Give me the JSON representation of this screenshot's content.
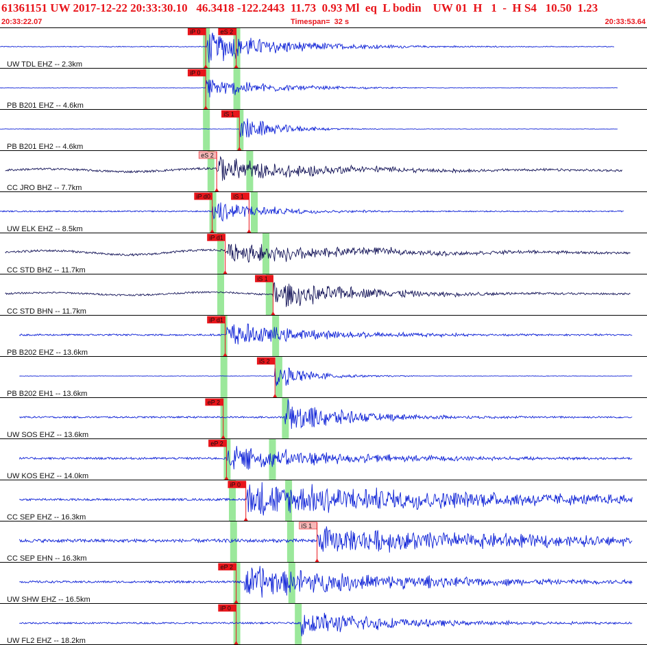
{
  "header": {
    "title": "61361151 UW 2017-12-22 20:33:30.10   46.3418 -122.2443  11.73  0.93 Ml  eq  L bodin    UW 01  H   1  -  H S4   10.50  1.23",
    "time_start": "20:33:22.07",
    "timespan": "Timespan=  32 s",
    "time_end": "20:33:53.64"
  },
  "colors": {
    "header_red": "#e8151b",
    "wave_blue": "#0b1fd6",
    "wave_navy": "#141458",
    "window_green": "#9be89b",
    "pick_red": "#e8151b",
    "pick_pink": "#f6b8b8",
    "separator": "#000000"
  },
  "traces": [
    {
      "label": "UW TDL EHZ -- 2.3km",
      "wave": "blue",
      "start": 0.0,
      "end": 0.95,
      "noise": 0.02,
      "onset": 0.318,
      "decay": 0.12,
      "peak": 0.7,
      "long_period": 0,
      "picks": [
        {
          "text": "iP 0",
          "t": 0.318,
          "kind": "red"
        },
        {
          "text": "eS 2",
          "t": 0.365,
          "kind": "red"
        }
      ],
      "windows": [
        0.318,
        0.365
      ]
    },
    {
      "label": "PB B201 EHZ -- 4.6km",
      "wave": "blue",
      "start": 0.0,
      "end": 0.955,
      "noise": 0.01,
      "onset": 0.318,
      "decay": 0.1,
      "peak": 0.45,
      "long_period": 0,
      "picks": [
        {
          "text": "iP 0",
          "t": 0.318,
          "kind": "red"
        }
      ],
      "windows": [
        0.318,
        0.365
      ]
    },
    {
      "label": "PB B201 EH2 -- 4.6km",
      "wave": "blue",
      "start": 0.0,
      "end": 0.955,
      "noise": 0.01,
      "onset": 0.37,
      "decay": 0.06,
      "peak": 0.55,
      "long_period": 0,
      "picks": [
        {
          "text": "iS 1",
          "t": 0.37,
          "kind": "red"
        }
      ],
      "windows": [
        0.318,
        0.37
      ]
    },
    {
      "label": "CC JRO BHZ -- 7.7km",
      "wave": "navy",
      "start": 0.008,
      "end": 0.962,
      "noise": 0.05,
      "onset": 0.335,
      "decay": 0.15,
      "peak": 0.55,
      "long_period": 0.08,
      "picks": [
        {
          "text": "eS 2",
          "t": 0.335,
          "kind": "pink"
        }
      ],
      "windows": [
        0.325,
        0.385
      ]
    },
    {
      "label": "UW ELK EHZ -- 8.5km",
      "wave": "blue",
      "start": 0.0,
      "end": 0.965,
      "noise": 0.03,
      "onset": 0.328,
      "decay": 0.08,
      "peak": 0.55,
      "long_period": 0,
      "picks": [
        {
          "text": "iP d0",
          "t": 0.328,
          "kind": "red"
        },
        {
          "text": "iS 1",
          "t": 0.385,
          "kind": "red"
        }
      ],
      "windows": [
        0.328,
        0.392
      ]
    },
    {
      "label": "CC STD BHZ -- 11.7km",
      "wave": "navy",
      "start": 0.008,
      "end": 0.975,
      "noise": 0.05,
      "onset": 0.348,
      "decay": 0.2,
      "peak": 0.45,
      "long_period": 0.12,
      "picks": [
        {
          "text": "iP d1",
          "t": 0.348,
          "kind": "red"
        }
      ],
      "windows": [
        0.34,
        0.41
      ]
    },
    {
      "label": "CC STD BHN -- 11.7km",
      "wave": "navy",
      "start": 0.008,
      "end": 0.975,
      "noise": 0.04,
      "onset": 0.422,
      "decay": 0.15,
      "peak": 0.55,
      "long_period": 0.07,
      "picks": [
        {
          "text": "iS 1",
          "t": 0.422,
          "kind": "red"
        }
      ],
      "windows": [
        0.34,
        0.415
      ]
    },
    {
      "label": "PB B202 EHZ -- 13.6km",
      "wave": "blue",
      "start": 0.03,
      "end": 0.978,
      "noise": 0.04,
      "onset": 0.348,
      "decay": 0.14,
      "peak": 0.55,
      "long_period": 0,
      "picks": [
        {
          "text": "iP d1",
          "t": 0.348,
          "kind": "red"
        }
      ],
      "windows": [
        0.345,
        0.425
      ]
    },
    {
      "label": "PB B202 EH1 -- 13.6km",
      "wave": "blue",
      "start": 0.03,
      "end": 0.978,
      "noise": 0.01,
      "onset": 0.425,
      "decay": 0.06,
      "peak": 0.5,
      "long_period": 0,
      "picks": [
        {
          "text": "iS 2",
          "t": 0.425,
          "kind": "red"
        }
      ],
      "windows": [
        0.345,
        0.43
      ]
    },
    {
      "label": "UW SOS EHZ -- 13.6km",
      "wave": "blue",
      "start": 0.03,
      "end": 0.978,
      "noise": 0.04,
      "onset": 0.44,
      "decay": 0.1,
      "peak": 0.75,
      "long_period": 0,
      "picks": [
        {
          "text": "eP 2",
          "t": 0.345,
          "kind": "red"
        }
      ],
      "windows": [
        0.345,
        0.44
      ]
    },
    {
      "label": "UW KOS EHZ -- 14.0km",
      "wave": "blue",
      "start": 0.03,
      "end": 0.978,
      "noise": 0.05,
      "onset": 0.35,
      "decay": 0.18,
      "peak": 0.55,
      "long_period": 0,
      "picks": [
        {
          "text": "eP 2",
          "t": 0.35,
          "kind": "red"
        }
      ],
      "windows": [
        0.35,
        0.42
      ]
    },
    {
      "label": "CC SEP EHZ -- 16.3km",
      "wave": "blue",
      "start": 0.03,
      "end": 0.978,
      "noise": 0.05,
      "onset": 0.38,
      "decay": 0.4,
      "peak": 0.75,
      "long_period": 0,
      "picks": [
        {
          "text": "iP 0",
          "t": 0.38,
          "kind": "red"
        }
      ],
      "windows": [
        0.358,
        0.445
      ]
    },
    {
      "label": "CC SEP EHN -- 16.3km",
      "wave": "blue",
      "start": 0.03,
      "end": 0.978,
      "noise": 0.08,
      "onset": 0.49,
      "decay": 0.4,
      "peak": 0.55,
      "long_period": 0,
      "picks": [
        {
          "text": "iS 1",
          "t": 0.49,
          "kind": "pink"
        }
      ],
      "windows": [
        0.36,
        0.448
      ]
    },
    {
      "label": "UW SHW EHZ -- 16.5km",
      "wave": "blue",
      "start": 0.03,
      "end": 0.978,
      "noise": 0.05,
      "onset": 0.378,
      "decay": 0.25,
      "peak": 0.7,
      "long_period": 0,
      "picks": [
        {
          "text": "eP 2",
          "t": 0.365,
          "kind": "red"
        }
      ],
      "windows": [
        0.365,
        0.45
      ]
    },
    {
      "label": "UW FL2 EHZ -- 18.2km",
      "wave": "blue",
      "start": 0.03,
      "end": 0.978,
      "noise": 0.04,
      "onset": 0.465,
      "decay": 0.15,
      "peak": 0.55,
      "long_period": 0,
      "picks": [
        {
          "text": "iP 0",
          "t": 0.365,
          "kind": "red"
        }
      ],
      "windows": [
        0.365,
        0.46
      ]
    }
  ]
}
